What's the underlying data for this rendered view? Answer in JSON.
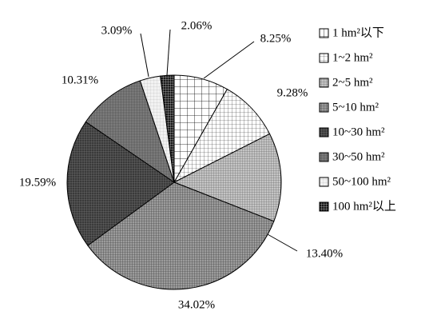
{
  "chart_data": {
    "type": "pie",
    "categories": [
      "1 hm²以下",
      "1~2 hm²",
      "2~5 hm²",
      "5~10 hm²",
      "10~30 hm²",
      "30~50 hm²",
      "50~100 hm²",
      "100 hm²以上"
    ],
    "values": [
      8.25,
      9.28,
      13.4,
      34.02,
      19.59,
      10.31,
      3.09,
      2.06
    ],
    "value_labels": [
      "8.25%",
      "9.28%",
      "13.40%",
      "34.02%",
      "19.59%",
      "10.31%",
      "3.09%",
      "2.06%"
    ],
    "colors": [
      "#ffffff",
      "#ffffff",
      "#c4c4c4",
      "#9c9c9c",
      "#3a3a3a",
      "#8c8c8c",
      "#f2f2f2",
      "#1a1a1a"
    ],
    "legend": "right"
  }
}
